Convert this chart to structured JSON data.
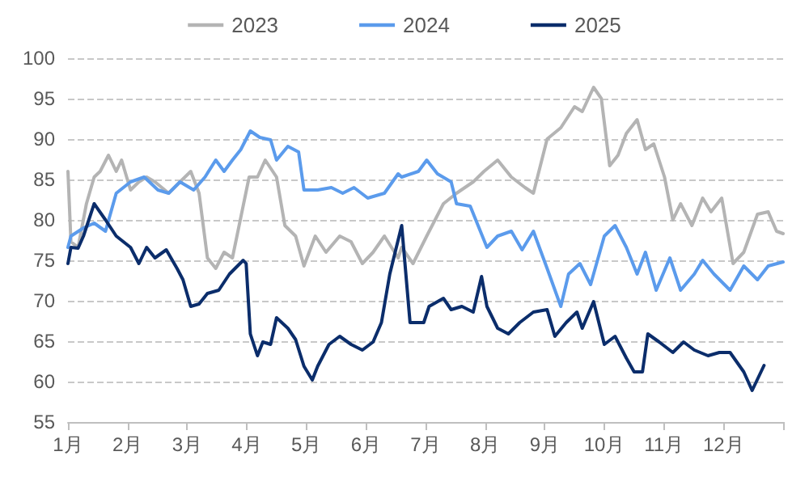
{
  "chart_data": {
    "type": "line",
    "legend": "top",
    "grid": "y",
    "marker": "none",
    "line_style": "solid",
    "xlim": [
      1,
      13
    ],
    "xticks": [
      {
        "value": 1,
        "label": "1月"
      },
      {
        "value": 2,
        "label": "2月"
      },
      {
        "value": 3,
        "label": "3月"
      },
      {
        "value": 4,
        "label": "4月"
      },
      {
        "value": 5,
        "label": "5月"
      },
      {
        "value": 6,
        "label": "6月"
      },
      {
        "value": 7,
        "label": "7月"
      },
      {
        "value": 8,
        "label": "8月"
      },
      {
        "value": 9,
        "label": "9月"
      },
      {
        "value": 10,
        "label": "10月"
      },
      {
        "value": 11,
        "label": "11月"
      },
      {
        "value": 12,
        "label": "12月"
      },
      {
        "value": 13,
        "label": null
      }
    ],
    "ylim": [
      55,
      100
    ],
    "yticks": [
      55,
      60,
      65,
      70,
      75,
      80,
      85,
      90,
      95,
      100
    ],
    "series": [
      {
        "name": "2023",
        "color": "#b4b4b4",
        "x": [
          1,
          1.05,
          1.17,
          1.31,
          1.44,
          1.54,
          1.68,
          1.81,
          1.9,
          2.05,
          2.19,
          2.32,
          2.46,
          2.69,
          2.88,
          3.06,
          3.2,
          3.34,
          3.48,
          3.62,
          3.76,
          4.04,
          4.18,
          4.31,
          4.5,
          4.64,
          4.82,
          4.96,
          5.15,
          5.33,
          5.56,
          5.75,
          5.94,
          6.12,
          6.31,
          6.54,
          6.6,
          6.79,
          7.02,
          7.3,
          7.52,
          7.8,
          7.98,
          8.21,
          8.44,
          8.67,
          8.81,
          9.04,
          9.27,
          9.5,
          9.63,
          9.82,
          9.95,
          10.09,
          10.23,
          10.37,
          10.55,
          10.69,
          10.83,
          11.01,
          11.15,
          11.28,
          11.47,
          11.65,
          11.79,
          11.97,
          12.16,
          12.34,
          12.57,
          12.75,
          12.89,
          13
        ],
        "values": [
          86,
          77.3,
          76.6,
          82,
          85.3,
          86,
          88,
          86,
          87.4,
          83.7,
          84.7,
          85.3,
          84.7,
          83.3,
          84.7,
          86,
          83.3,
          75.3,
          74,
          76,
          75.3,
          85.3,
          85.3,
          87.4,
          85.3,
          79.3,
          78,
          74.3,
          78,
          76,
          78,
          77.3,
          74.6,
          76,
          78,
          75.3,
          76.6,
          74.6,
          78,
          82,
          83.3,
          84.7,
          86,
          87.4,
          85.3,
          84,
          83.3,
          90,
          91.4,
          94,
          93.4,
          96.4,
          95,
          86.7,
          88,
          90.7,
          92.4,
          88.7,
          89.4,
          85.3,
          80,
          82,
          79.3,
          82.7,
          81,
          82.7,
          74.6,
          76,
          80.7,
          81,
          78.6,
          78.3
        ]
      },
      {
        "name": "2024",
        "color": "#5b9bec",
        "x": [
          1,
          1.05,
          1.26,
          1.44,
          1.63,
          1.81,
          2.05,
          2.28,
          2.51,
          2.69,
          2.88,
          3.11,
          3.3,
          3.48,
          3.62,
          3.76,
          3.9,
          4.06,
          4.22,
          4.4,
          4.5,
          4.69,
          4.87,
          4.96,
          5.19,
          5.42,
          5.61,
          5.8,
          6.03,
          6.31,
          6.54,
          6.6,
          6.88,
          7.02,
          7.2,
          7.43,
          7.52,
          7.75,
          8.03,
          8.21,
          8.44,
          8.62,
          8.81,
          9.04,
          9.27,
          9.4,
          9.59,
          9.77,
          10,
          10.18,
          10.37,
          10.55,
          10.69,
          10.87,
          11.1,
          11.28,
          11.51,
          11.65,
          11.84,
          12.11,
          12.34,
          12.57,
          12.75,
          13
        ],
        "values": [
          76.6,
          78,
          79,
          79.6,
          78.6,
          83.3,
          84.7,
          85.3,
          83.7,
          83.3,
          84.7,
          83.7,
          85.3,
          87.4,
          86,
          87.4,
          88.7,
          91,
          90.2,
          89.9,
          87.4,
          89.1,
          88.4,
          83.7,
          83.7,
          84,
          83.3,
          84,
          82.7,
          83.3,
          85.7,
          85.3,
          86,
          87.4,
          85.7,
          84.7,
          82,
          81.7,
          76.6,
          78,
          78.6,
          76.3,
          78.6,
          74,
          69.3,
          73.3,
          74.6,
          72,
          78,
          79.3,
          76.6,
          73.3,
          76,
          71.3,
          75.3,
          71.3,
          73.3,
          75,
          73.3,
          71.3,
          74.3,
          72.6,
          74.3,
          74.8
        ]
      },
      {
        "name": "2025",
        "color": "#0b2d6b",
        "x": [
          1,
          1.05,
          1.17,
          1.26,
          1.44,
          1.63,
          1.81,
          2.05,
          2.19,
          2.32,
          2.46,
          2.65,
          2.83,
          2.93,
          3.06,
          3.2,
          3.34,
          3.53,
          3.71,
          3.94,
          3.99,
          4.06,
          4.18,
          4.27,
          4.4,
          4.5,
          4.69,
          4.82,
          4.96,
          5.1,
          5.19,
          5.38,
          5.56,
          5.75,
          5.94,
          6.12,
          6.26,
          6.4,
          6.6,
          6.74,
          6.97,
          7.06,
          7.3,
          7.43,
          7.61,
          7.8,
          7.94,
          8.03,
          8.21,
          8.39,
          8.58,
          8.81,
          9.04,
          9.17,
          9.36,
          9.54,
          9.63,
          9.82,
          10,
          10.18,
          10.37,
          10.5,
          10.64,
          10.73,
          10.92,
          11.15,
          11.33,
          11.51,
          11.74,
          11.93,
          12.11,
          12.34,
          12.48,
          12.68
        ],
        "values": [
          74.6,
          76.6,
          76.5,
          78,
          82,
          80,
          78,
          76.6,
          74.6,
          76.6,
          75.3,
          76.3,
          74,
          72.6,
          69.3,
          69.6,
          70.9,
          71.3,
          73.3,
          75,
          74.6,
          65.9,
          63.2,
          64.9,
          64.6,
          67.9,
          66.6,
          65.2,
          61.9,
          60.2,
          61.9,
          64.6,
          65.6,
          64.6,
          63.9,
          64.9,
          67.3,
          73.3,
          79.3,
          67.3,
          67.3,
          69.3,
          70.3,
          68.9,
          69.3,
          68.6,
          73,
          69.3,
          66.6,
          65.9,
          67.3,
          68.6,
          68.9,
          65.6,
          67.3,
          68.6,
          66.6,
          69.9,
          64.6,
          65.6,
          62.9,
          61.2,
          61.2,
          65.9,
          64.9,
          63.6,
          64.9,
          63.9,
          63.2,
          63.6,
          63.6,
          61.2,
          58.9,
          62
        ]
      }
    ]
  }
}
